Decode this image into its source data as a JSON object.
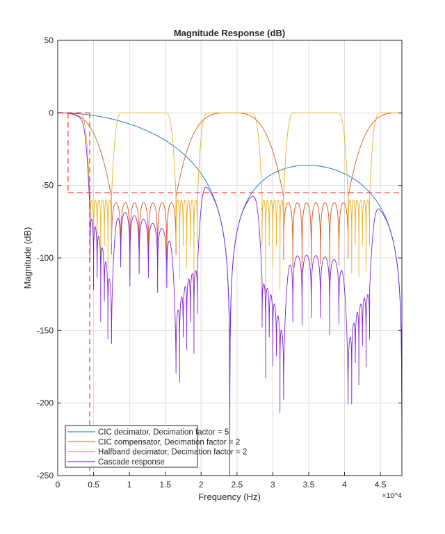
{
  "chart_data": {
    "type": "line",
    "title": "Magnitude Response (dB)",
    "xlabel": "Frequency (Hz)",
    "ylabel": "Magnitude (dB)",
    "x_exponent_label": "×10^4",
    "xlim": [
      0,
      48000
    ],
    "ylim": [
      -250,
      50
    ],
    "x_ticks": [
      0,
      5000,
      10000,
      15000,
      20000,
      25000,
      30000,
      35000,
      40000,
      45000
    ],
    "x_tick_labels": [
      "0",
      "0.5",
      "1",
      "1.5",
      "2",
      "2.5",
      "3",
      "3.5",
      "4",
      "4.5"
    ],
    "y_ticks": [
      50,
      0,
      -50,
      -100,
      -150,
      -200,
      -250
    ],
    "y_tick_labels": [
      "50",
      "0",
      "-50",
      "-100",
      "-150",
      "-200",
      "-250"
    ],
    "grid": true,
    "legend_placement": "bottom-left",
    "series": [
      {
        "name": "CIC decimator, Decimation factor = 5",
        "color": "#0072BD",
        "null_frequencies_hz": [
          24000,
          48000
        ],
        "sidelobe_peak": {
          "x": 34800,
          "y": -36
        }
      },
      {
        "name": "CIC compensator, Decimation factor = 2",
        "color": "#D95319",
        "passband_centers_hz": [
          0,
          24000,
          48000
        ],
        "stopband_level_db": -62
      },
      {
        "name": "Halfband decimator, Decimation factor = 2",
        "color": "#EDB120",
        "passband_centers_hz": [
          0,
          12000,
          24000,
          36000,
          48000
        ],
        "stopband_level_db": -60
      },
      {
        "name": "Cascade response",
        "color": "#7F1FD6"
      }
    ],
    "mask": {
      "color": "#FF0000",
      "segments": [
        [
          [
            0,
            0
          ],
          [
            4460,
            0
          ]
        ],
        [
          [
            1450,
            0
          ],
          [
            1450,
            -55
          ]
        ],
        [
          [
            1450,
            -55
          ],
          [
            48000,
            -55
          ]
        ],
        [
          [
            4460,
            0
          ],
          [
            4460,
            -250
          ]
        ]
      ]
    }
  }
}
